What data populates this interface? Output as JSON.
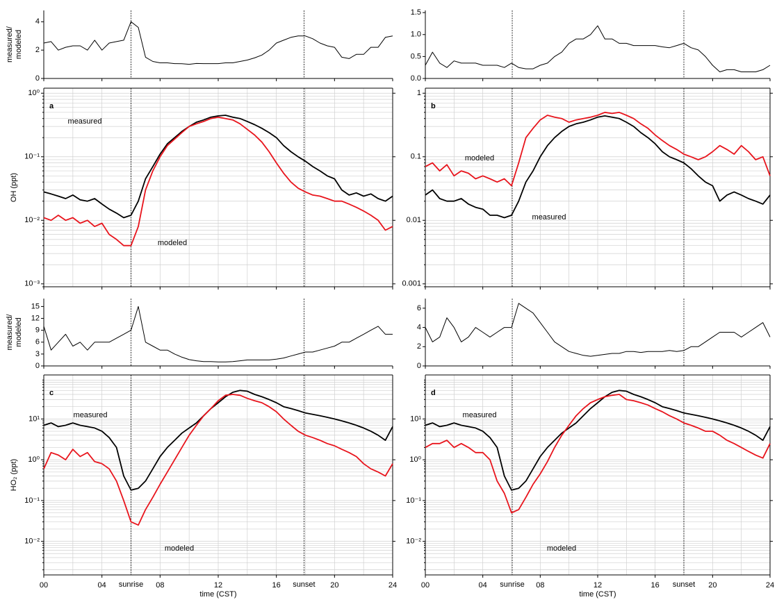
{
  "chart_data": [
    {
      "type": "line",
      "ylabel": [
        "measured/",
        "modeled"
      ],
      "xlim": [
        0,
        24
      ],
      "ylim": [
        0,
        4.8
      ],
      "yticks": [
        0,
        2,
        4
      ],
      "vlines": [
        6,
        17.9
      ],
      "color": "#000000",
      "x": [
        0,
        0.5,
        1,
        1.5,
        2,
        2.5,
        3,
        3.5,
        4,
        4.5,
        5,
        5.5,
        6,
        6.5,
        7,
        7.5,
        8,
        8.5,
        9,
        9.5,
        10,
        10.5,
        11,
        11.5,
        12,
        12.5,
        13,
        13.5,
        14,
        14.5,
        15,
        15.5,
        16,
        16.5,
        17,
        17.5,
        18,
        18.5,
        19,
        19.5,
        20,
        20.5,
        21,
        21.5,
        22,
        22.5,
        23,
        23.5,
        24
      ],
      "values": [
        2.5,
        2.6,
        2.0,
        2.2,
        2.3,
        2.3,
        2.0,
        2.7,
        2.0,
        2.5,
        2.6,
        2.7,
        4.0,
        3.6,
        1.5,
        1.2,
        1.1,
        1.1,
        1.05,
        1.04,
        1.0,
        1.06,
        1.05,
        1.05,
        1.05,
        1.1,
        1.1,
        1.2,
        1.3,
        1.45,
        1.65,
        2.0,
        2.5,
        2.7,
        2.9,
        3.0,
        3.0,
        2.8,
        2.5,
        2.3,
        2.2,
        1.5,
        1.4,
        1.7,
        1.7,
        2.2,
        2.2,
        2.9,
        3.0
      ]
    },
    {
      "type": "line",
      "log": true,
      "label": "a",
      "ylabel": [
        "OH (ppt)"
      ],
      "xlim": [
        0,
        24
      ],
      "ylim": [
        0.0009,
        1.2
      ],
      "vlines": [
        6,
        17.9
      ],
      "grid": true,
      "yticks": [
        {
          "value": 0.001,
          "label": "10⁻³"
        },
        {
          "value": 0.01,
          "label": "10⁻²"
        },
        {
          "value": 0.1,
          "label": "10⁻¹"
        },
        {
          "value": 1,
          "label": "10⁰"
        }
      ],
      "x": [
        0,
        0.5,
        1,
        1.5,
        2,
        2.5,
        3,
        3.5,
        4,
        4.5,
        5,
        5.5,
        6,
        6.5,
        7,
        7.5,
        8,
        8.5,
        9,
        9.5,
        10,
        10.5,
        11,
        11.5,
        12,
        12.5,
        13,
        13.5,
        14,
        14.5,
        15,
        15.5,
        16,
        16.5,
        17,
        17.5,
        18,
        18.5,
        19,
        19.5,
        20,
        20.5,
        21,
        21.5,
        22,
        22.5,
        23,
        23.5,
        24
      ],
      "series": [
        {
          "name": "measured",
          "color": "#000000",
          "values": [
            0.028,
            0.026,
            0.024,
            0.022,
            0.025,
            0.021,
            0.02,
            0.022,
            0.018,
            0.015,
            0.013,
            0.011,
            0.012,
            0.02,
            0.045,
            0.07,
            0.11,
            0.16,
            0.2,
            0.25,
            0.3,
            0.35,
            0.38,
            0.42,
            0.44,
            0.45,
            0.42,
            0.4,
            0.36,
            0.32,
            0.28,
            0.24,
            0.2,
            0.15,
            0.12,
            0.1,
            0.085,
            0.07,
            0.06,
            0.05,
            0.045,
            0.03,
            0.025,
            0.027,
            0.024,
            0.026,
            0.022,
            0.02,
            0.024
          ]
        },
        {
          "name": "modeled",
          "color": "#e8141c",
          "values": [
            0.011,
            0.01,
            0.012,
            0.01,
            0.011,
            0.009,
            0.01,
            0.008,
            0.009,
            0.006,
            0.005,
            0.004,
            0.004,
            0.008,
            0.03,
            0.06,
            0.1,
            0.15,
            0.19,
            0.24,
            0.3,
            0.33,
            0.36,
            0.4,
            0.42,
            0.4,
            0.38,
            0.33,
            0.27,
            0.22,
            0.17,
            0.12,
            0.08,
            0.055,
            0.04,
            0.032,
            0.028,
            0.025,
            0.024,
            0.022,
            0.02,
            0.02,
            0.018,
            0.016,
            0.014,
            0.012,
            0.01,
            0.007,
            0.008
          ]
        }
      ]
    },
    {
      "type": "line",
      "ylabel": [
        "measured/",
        "modeled"
      ],
      "xlim": [
        0,
        24
      ],
      "ylim": [
        0,
        17
      ],
      "yticks": [
        0,
        3,
        6,
        9,
        12,
        15
      ],
      "vlines": [
        6,
        17.9
      ],
      "color": "#000000",
      "x": [
        0,
        0.5,
        1,
        1.5,
        2,
        2.5,
        3,
        3.5,
        4,
        4.5,
        5,
        5.5,
        6,
        6.5,
        7,
        7.5,
        8,
        8.5,
        9,
        9.5,
        10,
        10.5,
        11,
        11.5,
        12,
        12.5,
        13,
        13.5,
        14,
        14.5,
        15,
        15.5,
        16,
        16.5,
        17,
        17.5,
        18,
        18.5,
        19,
        19.5,
        20,
        20.5,
        21,
        21.5,
        22,
        22.5,
        23,
        23.5,
        24
      ],
      "values": [
        10,
        4,
        6,
        8,
        5,
        6,
        4,
        6,
        6,
        6,
        7,
        8,
        9,
        15,
        6,
        5,
        4,
        4,
        3,
        2.2,
        1.6,
        1.3,
        1.1,
        1.1,
        1,
        1,
        1.1,
        1.3,
        1.5,
        1.5,
        1.5,
        1.5,
        1.7,
        2,
        2.5,
        3,
        3.5,
        3.5,
        4,
        4.5,
        5,
        6,
        6,
        7,
        8,
        9,
        10,
        8,
        8
      ]
    },
    {
      "type": "line",
      "log": true,
      "label": "c",
      "ylabel": [
        "HO₂ (ppt)"
      ],
      "xlabel": "time (CST)",
      "xlim": [
        0,
        24
      ],
      "ylim": [
        0.0015,
        120
      ],
      "grid": true,
      "vlines": [
        {
          "value": 6,
          "label": "sunrise"
        },
        {
          "value": 17.9,
          "label": "sunset"
        }
      ],
      "xticks": [
        {
          "value": 0,
          "label": "00"
        },
        {
          "value": 4,
          "label": "04"
        },
        {
          "value": 8,
          "label": "08"
        },
        12,
        16,
        20,
        24
      ],
      "yticks": [
        {
          "value": 0.01,
          "label": "10⁻²"
        },
        {
          "value": 0.1,
          "label": "10⁻¹"
        },
        {
          "value": 1,
          "label": "10⁰"
        },
        {
          "value": 10,
          "label": "10¹"
        }
      ],
      "x": [
        0,
        0.5,
        1,
        1.5,
        2,
        2.5,
        3,
        3.5,
        4,
        4.5,
        5,
        5.5,
        6,
        6.5,
        7,
        7.5,
        8,
        8.5,
        9,
        9.5,
        10,
        10.5,
        11,
        11.5,
        12,
        12.5,
        13,
        13.5,
        14,
        14.5,
        15,
        15.5,
        16,
        16.5,
        17,
        17.5,
        18,
        18.5,
        19,
        19.5,
        20,
        20.5,
        21,
        21.5,
        22,
        22.5,
        23,
        23.5,
        24
      ],
      "series": [
        {
          "name": "measured",
          "color": "#000000",
          "values": [
            7,
            8,
            6.5,
            7,
            8,
            7,
            6.5,
            6,
            5,
            3.5,
            2,
            0.4,
            0.18,
            0.2,
            0.3,
            0.6,
            1.2,
            2,
            3,
            4.5,
            6,
            8,
            12,
            18,
            25,
            35,
            45,
            50,
            48,
            40,
            35,
            30,
            25,
            20,
            18,
            16,
            14,
            13,
            12,
            11,
            10,
            9,
            8,
            7,
            6,
            5,
            4,
            3,
            6.5
          ]
        },
        {
          "name": "modeled",
          "color": "#e8141c",
          "values": [
            0.6,
            1.5,
            1.3,
            1.0,
            1.8,
            1.2,
            1.5,
            0.9,
            0.8,
            0.6,
            0.3,
            0.1,
            0.03,
            0.025,
            0.06,
            0.12,
            0.25,
            0.5,
            1,
            2,
            4,
            7,
            12,
            18,
            28,
            38,
            40,
            38,
            32,
            28,
            25,
            20,
            15,
            10,
            7,
            5,
            4,
            3.5,
            3,
            2.5,
            2.2,
            1.8,
            1.5,
            1.2,
            0.8,
            0.6,
            0.5,
            0.4,
            0.8
          ]
        }
      ]
    },
    {
      "type": "line",
      "xlim": [
        0,
        24
      ],
      "ylim": [
        0,
        1.55
      ],
      "vlines": [
        6.05,
        18
      ],
      "color": "#000000",
      "yticks": [
        {
          "value": 0,
          "label": "0.0"
        },
        {
          "value": 0.5,
          "label": "0.5"
        },
        {
          "value": 1,
          "label": "1.0"
        },
        {
          "value": 1.5,
          "label": "1.5"
        }
      ],
      "x": [
        0,
        0.5,
        1,
        1.5,
        2,
        2.5,
        3,
        3.5,
        4,
        4.5,
        5,
        5.5,
        6,
        6.5,
        7,
        7.5,
        8,
        8.5,
        9,
        9.5,
        10,
        10.5,
        11,
        11.5,
        12,
        12.5,
        13,
        13.5,
        14,
        14.5,
        15,
        15.5,
        16,
        16.5,
        17,
        17.5,
        18,
        18.5,
        19,
        19.5,
        20,
        20.5,
        21,
        21.5,
        22,
        22.5,
        23,
        23.5,
        24
      ],
      "values": [
        0.3,
        0.6,
        0.35,
        0.25,
        0.4,
        0.35,
        0.35,
        0.35,
        0.3,
        0.3,
        0.3,
        0.25,
        0.35,
        0.25,
        0.22,
        0.22,
        0.3,
        0.35,
        0.5,
        0.6,
        0.8,
        0.9,
        0.9,
        1.0,
        1.2,
        0.9,
        0.9,
        0.8,
        0.8,
        0.75,
        0.75,
        0.75,
        0.75,
        0.72,
        0.7,
        0.75,
        0.8,
        0.7,
        0.65,
        0.5,
        0.3,
        0.15,
        0.2,
        0.2,
        0.15,
        0.15,
        0.15,
        0.2,
        0.3
      ]
    },
    {
      "type": "line",
      "log": true,
      "label": "b",
      "xlim": [
        0,
        24
      ],
      "ylim": [
        0.0009,
        1.2
      ],
      "vlines": [
        6.05,
        18
      ],
      "grid": true,
      "yticks": [
        0.001,
        0.01,
        0.1,
        1
      ],
      "x": [
        0,
        0.5,
        1,
        1.5,
        2,
        2.5,
        3,
        3.5,
        4,
        4.5,
        5,
        5.5,
        6,
        6.5,
        7,
        7.5,
        8,
        8.5,
        9,
        9.5,
        10,
        10.5,
        11,
        11.5,
        12,
        12.5,
        13,
        13.5,
        14,
        14.5,
        15,
        15.5,
        16,
        16.5,
        17,
        17.5,
        18,
        18.5,
        19,
        19.5,
        20,
        20.5,
        21,
        21.5,
        22,
        22.5,
        23,
        23.5,
        24
      ],
      "series": [
        {
          "name": "measured",
          "color": "#000000",
          "values": [
            0.025,
            0.03,
            0.022,
            0.02,
            0.02,
            0.022,
            0.018,
            0.016,
            0.015,
            0.012,
            0.012,
            0.011,
            0.012,
            0.02,
            0.04,
            0.06,
            0.1,
            0.15,
            0.2,
            0.25,
            0.3,
            0.33,
            0.35,
            0.38,
            0.42,
            0.44,
            0.42,
            0.4,
            0.35,
            0.3,
            0.24,
            0.2,
            0.16,
            0.12,
            0.1,
            0.09,
            0.08,
            0.065,
            0.05,
            0.04,
            0.035,
            0.02,
            0.025,
            0.028,
            0.025,
            0.022,
            0.02,
            0.018,
            0.025
          ]
        },
        {
          "name": "modeled",
          "color": "#e8141c",
          "values": [
            0.07,
            0.08,
            0.06,
            0.075,
            0.05,
            0.06,
            0.055,
            0.045,
            0.05,
            0.045,
            0.04,
            0.045,
            0.035,
            0.08,
            0.2,
            0.28,
            0.38,
            0.45,
            0.42,
            0.4,
            0.35,
            0.38,
            0.4,
            0.42,
            0.45,
            0.5,
            0.48,
            0.5,
            0.45,
            0.4,
            0.33,
            0.28,
            0.22,
            0.18,
            0.15,
            0.13,
            0.11,
            0.1,
            0.09,
            0.1,
            0.12,
            0.15,
            0.13,
            0.11,
            0.15,
            0.12,
            0.09,
            0.1,
            0.05
          ]
        }
      ]
    },
    {
      "type": "line",
      "xlim": [
        0,
        24
      ],
      "ylim": [
        0,
        7
      ],
      "yticks": [
        0,
        2,
        4,
        6
      ],
      "vlines": [
        6.05,
        18
      ],
      "color": "#000000",
      "x": [
        0,
        0.5,
        1,
        1.5,
        2,
        2.5,
        3,
        3.5,
        4,
        4.5,
        5,
        5.5,
        6,
        6.5,
        7,
        7.5,
        8,
        8.5,
        9,
        9.5,
        10,
        10.5,
        11,
        11.5,
        12,
        12.5,
        13,
        13.5,
        14,
        14.5,
        15,
        15.5,
        16,
        16.5,
        17,
        17.5,
        18,
        18.5,
        19,
        19.5,
        20,
        20.5,
        21,
        21.5,
        22,
        22.5,
        23,
        23.5,
        24
      ],
      "values": [
        4,
        2.5,
        3,
        5,
        4,
        2.5,
        3,
        4,
        3.5,
        3,
        3.5,
        4,
        4,
        6.5,
        6,
        5.5,
        4.5,
        3.5,
        2.5,
        2,
        1.5,
        1.3,
        1.1,
        1.0,
        1.1,
        1.2,
        1.3,
        1.3,
        1.5,
        1.5,
        1.4,
        1.5,
        1.5,
        1.5,
        1.6,
        1.5,
        1.6,
        2,
        2,
        2.5,
        3,
        3.5,
        3.5,
        3.5,
        3,
        3.5,
        4,
        4.5,
        3
      ]
    },
    {
      "type": "line",
      "log": true,
      "label": "d",
      "xlabel": "time (CST)",
      "xlim": [
        0,
        24
      ],
      "ylim": [
        0.0015,
        120
      ],
      "grid": true,
      "vlines": [
        {
          "value": 6.05,
          "label": "sunrise"
        },
        {
          "value": 18,
          "label": "sunset"
        }
      ],
      "xticks": [
        {
          "value": 0,
          "label": "00"
        },
        {
          "value": 4,
          "label": "04"
        },
        {
          "value": 8,
          "label": "08"
        },
        12,
        16,
        20,
        24
      ],
      "yticks": [
        {
          "value": 0.01,
          "label": "10⁻²"
        },
        {
          "value": 0.1,
          "label": "10⁻¹"
        },
        {
          "value": 1,
          "label": "10⁰"
        },
        {
          "value": 10,
          "label": "10¹"
        }
      ],
      "x": [
        0,
        0.5,
        1,
        1.5,
        2,
        2.5,
        3,
        3.5,
        4,
        4.5,
        5,
        5.5,
        6,
        6.5,
        7,
        7.5,
        8,
        8.5,
        9,
        9.5,
        10,
        10.5,
        11,
        11.5,
        12,
        12.5,
        13,
        13.5,
        14,
        14.5,
        15,
        15.5,
        16,
        16.5,
        17,
        17.5,
        18,
        18.5,
        19,
        19.5,
        20,
        20.5,
        21,
        21.5,
        22,
        22.5,
        23,
        23.5,
        24
      ],
      "series": [
        {
          "name": "measured",
          "color": "#000000",
          "values": [
            7,
            8,
            6.5,
            7,
            8,
            7,
            6.5,
            6,
            5,
            3.5,
            2,
            0.4,
            0.18,
            0.2,
            0.3,
            0.6,
            1.2,
            2,
            3,
            4.5,
            6,
            8,
            12,
            18,
            25,
            35,
            45,
            50,
            48,
            40,
            35,
            30,
            25,
            20,
            18,
            16,
            14,
            13,
            12,
            11,
            10,
            9,
            8,
            7,
            6,
            5,
            4,
            3,
            6.5
          ]
        },
        {
          "name": "modeled",
          "color": "#e8141c",
          "values": [
            2,
            2.5,
            2.5,
            3,
            2,
            2.5,
            2,
            1.5,
            1.5,
            1,
            0.3,
            0.15,
            0.05,
            0.06,
            0.12,
            0.25,
            0.45,
            0.9,
            2,
            4,
            7,
            12,
            18,
            25,
            30,
            35,
            38,
            40,
            30,
            28,
            25,
            22,
            18,
            15,
            12,
            10,
            8,
            7,
            6,
            5,
            5,
            4,
            3,
            2.5,
            2,
            1.6,
            1.3,
            1.1,
            2.5
          ]
        }
      ]
    }
  ]
}
